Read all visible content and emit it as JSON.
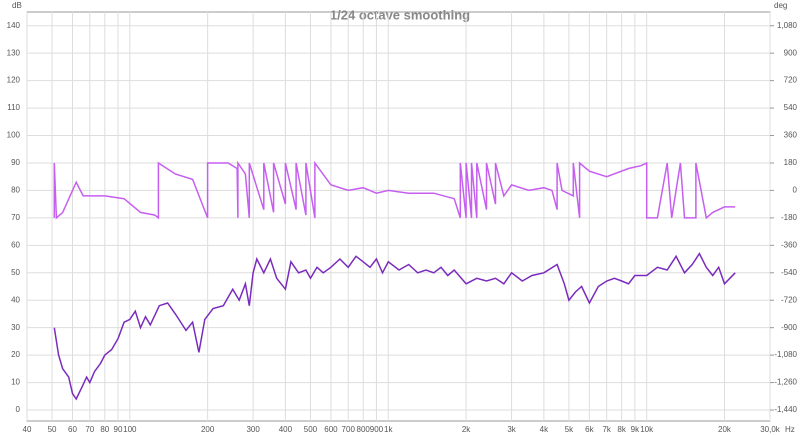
{
  "chart_data": {
    "type": "line",
    "title": "1/24 octave smoothing",
    "y_label": "dB",
    "y2_label": "deg",
    "x_label": "Hz",
    "log_x": true,
    "grid": true,
    "xlim": [
      40,
      30000
    ],
    "ylim": [
      -4,
      145
    ],
    "y2lim": [
      -1512,
      1170
    ],
    "xticks": [
      40,
      50,
      60,
      70,
      80,
      90,
      100,
      200,
      300,
      400,
      500,
      600,
      700,
      800,
      900,
      {
        "value": 1000,
        "label": "1k"
      },
      {
        "value": 2000,
        "label": "2k"
      },
      {
        "value": 3000,
        "label": "3k"
      },
      {
        "value": 4000,
        "label": "4k"
      },
      {
        "value": 5000,
        "label": "5k"
      },
      {
        "value": 6000,
        "label": "6k"
      },
      {
        "value": 7000,
        "label": "7k"
      },
      {
        "value": 8000,
        "label": "8k"
      },
      {
        "value": 9000,
        "label": "9k"
      },
      {
        "value": 10000,
        "label": "10k"
      },
      {
        "value": 20000,
        "label": "20k"
      },
      {
        "value": 30000,
        "label": "30,0k"
      }
    ],
    "yticks": [
      0,
      10,
      20,
      30,
      40,
      50,
      60,
      70,
      80,
      90,
      100,
      110,
      120,
      130,
      140
    ],
    "y2ticks": [
      {
        "value": -1440,
        "label": "-1,440"
      },
      {
        "value": -1260,
        "label": "-1,260"
      },
      {
        "value": -1080,
        "label": "-1,080"
      },
      -900,
      -720,
      -540,
      -360,
      -180,
      0,
      180,
      360,
      540,
      720,
      900,
      {
        "value": 1080,
        "label": "1,080"
      }
    ],
    "series": [
      {
        "color": "#7a2bbd",
        "axis": "y",
        "x": [
          51,
          53,
          55,
          58,
          60,
          62,
          65,
          68,
          70,
          73,
          77,
          80,
          85,
          90,
          95,
          100,
          105,
          110,
          115,
          120,
          130,
          140,
          150,
          165,
          175,
          185,
          195,
          210,
          230,
          250,
          265,
          280,
          290,
          300,
          310,
          330,
          350,
          370,
          400,
          420,
          450,
          480,
          500,
          530,
          560,
          600,
          650,
          700,
          750,
          800,
          850,
          900,
          950,
          1000,
          1100,
          1200,
          1300,
          1400,
          1500,
          1600,
          1700,
          1800,
          2000,
          2200,
          2400,
          2600,
          2800,
          3000,
          3300,
          3600,
          4000,
          4500,
          4800,
          5000,
          5300,
          5600,
          6000,
          6500,
          7000,
          7500,
          8000,
          8500,
          9000,
          10000,
          11000,
          12000,
          13000,
          14000,
          15000,
          16000,
          17000,
          18000,
          19000,
          20000,
          22000
        ],
        "values": [
          30,
          20,
          15,
          12,
          6,
          4,
          8,
          12,
          10,
          14,
          17,
          20,
          22,
          26,
          32,
          33,
          36,
          30,
          34,
          31,
          38,
          39,
          35,
          29,
          32,
          21,
          33,
          37,
          38,
          44,
          40,
          46,
          38,
          50,
          55,
          50,
          55,
          48,
          44,
          54,
          50,
          51,
          48,
          52,
          50,
          52,
          55,
          52,
          56,
          54,
          52,
          55,
          50,
          54,
          51,
          53,
          50,
          51,
          50,
          52,
          49,
          51,
          46,
          48,
          47,
          48,
          46,
          50,
          47,
          49,
          50,
          53,
          46,
          40,
          43,
          45,
          39,
          45,
          47,
          48,
          47,
          46,
          49,
          49,
          52,
          51,
          56,
          50,
          53,
          57,
          52,
          49,
          52,
          46,
          50
        ]
      },
      {
        "color": "#c65ff0",
        "axis": "y2",
        "x": [
          51,
          51,
          52,
          55,
          62,
          66,
          75,
          80,
          95,
          110,
          125,
          129,
          129,
          150,
          175,
          200,
          200,
          240,
          260,
          262,
          262,
          280,
          290,
          290,
          330,
          330,
          360,
          360,
          400,
          400,
          440,
          440,
          480,
          480,
          520,
          520,
          600,
          700,
          800,
          900,
          1000,
          1200,
          1500,
          1800,
          1900,
          1900,
          2000,
          2000,
          2100,
          2100,
          2200,
          2200,
          2400,
          2400,
          2600,
          2600,
          2800,
          3000,
          3500,
          4000,
          4300,
          4500,
          4500,
          4700,
          5200,
          5200,
          5500,
          5500,
          6000,
          7000,
          8500,
          9500,
          10000,
          10000,
          11000,
          12000,
          12500,
          13500,
          14000,
          15500,
          15500,
          17000,
          18000,
          20000,
          22000
        ],
        "values": [
          -180,
          180,
          -180,
          -144,
          54,
          -36,
          -36,
          -36,
          -54,
          -144,
          -162,
          -180,
          180,
          108,
          72,
          -180,
          180,
          180,
          144,
          -180,
          180,
          108,
          -180,
          180,
          -126,
          180,
          -144,
          180,
          -90,
          180,
          -126,
          180,
          -162,
          180,
          -180,
          180,
          36,
          0,
          18,
          -18,
          0,
          -18,
          -18,
          -54,
          -180,
          180,
          -180,
          180,
          -180,
          180,
          -180,
          180,
          -126,
          180,
          -90,
          180,
          -36,
          36,
          0,
          18,
          0,
          -126,
          180,
          0,
          -36,
          180,
          -180,
          180,
          126,
          90,
          144,
          162,
          180,
          -180,
          -180,
          180,
          -180,
          180,
          -180,
          -180,
          180,
          -180,
          -144,
          -108,
          -108
        ]
      }
    ]
  }
}
